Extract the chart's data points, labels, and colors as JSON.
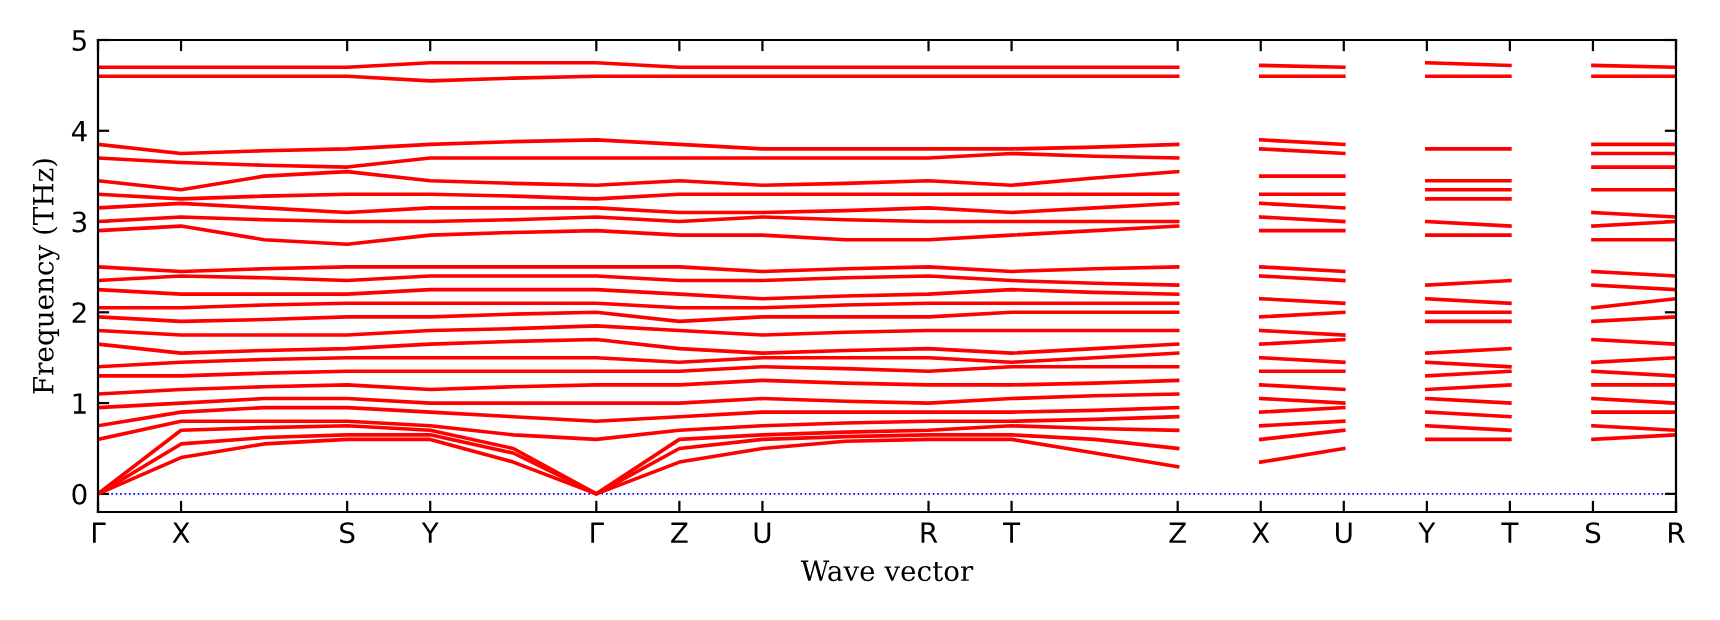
{
  "chart_data": {
    "type": "line",
    "ylabel": "Frequency (THz)",
    "xlabel": "Wave vector",
    "categories": [
      "Γ",
      "X",
      null,
      "S",
      "Y",
      null,
      "Γ",
      "Z",
      "U",
      null,
      "R",
      "T",
      null,
      "Z",
      "X",
      "U",
      "Y",
      "T",
      "S",
      "R"
    ],
    "ylim": [
      -0.2,
      5
    ],
    "yticks": [
      0,
      1,
      2,
      3,
      4,
      5
    ],
    "grid": false,
    "legend": false,
    "marker": "none",
    "line_style": "solid",
    "ref_lines": [
      {
        "axis": "y",
        "value": 0,
        "color": "#0000ff",
        "line_style": "dotted"
      }
    ],
    "series": [
      {
        "color": "#ff0000",
        "values": [
          0,
          0.4,
          0.55,
          0.6,
          0.6,
          0.35,
          0,
          0.35,
          0.5,
          0.58,
          0.6,
          0.6,
          0.45,
          0.3,
          null,
          null,
          null,
          null,
          null,
          null
        ]
      },
      {
        "color": "#ff0000",
        "values": [
          0,
          0.55,
          0.62,
          0.65,
          0.65,
          0.45,
          0,
          0.5,
          0.6,
          0.63,
          0.65,
          0.65,
          0.6,
          0.5,
          null,
          null,
          null,
          null,
          null,
          null
        ]
      },
      {
        "color": "#ff0000",
        "values": [
          0,
          0.7,
          0.73,
          0.75,
          0.7,
          0.5,
          0,
          0.6,
          0.65,
          0.68,
          0.7,
          0.75,
          0.72,
          0.7,
          null,
          null,
          null,
          null,
          null,
          null
        ]
      },
      {
        "color": "#ff0000",
        "values": [
          0.6,
          0.8,
          0.8,
          0.8,
          0.75,
          0.65,
          0.6,
          0.7,
          0.75,
          0.78,
          0.8,
          0.8,
          0.82,
          0.85,
          null,
          null,
          null,
          null,
          null,
          null
        ]
      },
      {
        "color": "#ff0000",
        "values": [
          0.75,
          0.9,
          0.95,
          0.95,
          0.9,
          0.85,
          0.8,
          0.85,
          0.9,
          0.9,
          0.9,
          0.9,
          0.92,
          0.95,
          null,
          null,
          null,
          null,
          null,
          null
        ]
      },
      {
        "color": "#ff0000",
        "values": [
          0.95,
          1.0,
          1.05,
          1.05,
          1.0,
          1.0,
          1.0,
          1.0,
          1.05,
          1.02,
          1.0,
          1.05,
          1.08,
          1.1,
          null,
          null,
          null,
          null,
          null,
          null
        ]
      },
      {
        "color": "#ff0000",
        "values": [
          1.1,
          1.15,
          1.18,
          1.2,
          1.15,
          1.18,
          1.2,
          1.2,
          1.25,
          1.22,
          1.2,
          1.2,
          1.22,
          1.25,
          null,
          null,
          null,
          null,
          null,
          null
        ]
      },
      {
        "color": "#ff0000",
        "values": [
          1.3,
          1.3,
          1.33,
          1.35,
          1.35,
          1.35,
          1.35,
          1.35,
          1.4,
          1.38,
          1.35,
          1.4,
          1.4,
          1.4,
          null,
          null,
          null,
          null,
          null,
          null
        ]
      },
      {
        "color": "#ff0000",
        "values": [
          1.4,
          1.45,
          1.48,
          1.5,
          1.5,
          1.5,
          1.5,
          1.45,
          1.5,
          1.5,
          1.5,
          1.45,
          1.5,
          1.55,
          null,
          null,
          null,
          null,
          null,
          null
        ]
      },
      {
        "color": "#ff0000",
        "values": [
          1.65,
          1.55,
          1.58,
          1.6,
          1.65,
          1.68,
          1.7,
          1.6,
          1.55,
          1.58,
          1.6,
          1.55,
          1.6,
          1.65,
          null,
          null,
          null,
          null,
          null,
          null
        ]
      },
      {
        "color": "#ff0000",
        "values": [
          1.8,
          1.75,
          1.75,
          1.75,
          1.8,
          1.82,
          1.85,
          1.8,
          1.75,
          1.78,
          1.8,
          1.8,
          1.8,
          1.8,
          null,
          null,
          null,
          null,
          null,
          null
        ]
      },
      {
        "color": "#ff0000",
        "values": [
          1.95,
          1.9,
          1.92,
          1.95,
          1.95,
          1.98,
          2.0,
          1.9,
          1.95,
          1.95,
          1.95,
          2.0,
          2.0,
          2.0,
          null,
          null,
          null,
          null,
          null,
          null
        ]
      },
      {
        "color": "#ff0000",
        "values": [
          2.05,
          2.05,
          2.08,
          2.1,
          2.1,
          2.1,
          2.1,
          2.05,
          2.05,
          2.08,
          2.1,
          2.1,
          2.1,
          2.1,
          null,
          null,
          null,
          null,
          null,
          null
        ]
      },
      {
        "color": "#ff0000",
        "values": [
          2.25,
          2.2,
          2.2,
          2.2,
          2.25,
          2.25,
          2.25,
          2.2,
          2.15,
          2.18,
          2.2,
          2.25,
          2.22,
          2.2,
          null,
          null,
          null,
          null,
          null,
          null
        ]
      },
      {
        "color": "#ff0000",
        "values": [
          2.35,
          2.4,
          2.38,
          2.35,
          2.4,
          2.4,
          2.4,
          2.35,
          2.35,
          2.38,
          2.4,
          2.35,
          2.32,
          2.3,
          null,
          null,
          null,
          null,
          null,
          null
        ]
      },
      {
        "color": "#ff0000",
        "values": [
          2.5,
          2.45,
          2.48,
          2.5,
          2.5,
          2.5,
          2.5,
          2.5,
          2.45,
          2.48,
          2.5,
          2.45,
          2.48,
          2.5,
          null,
          null,
          null,
          null,
          null,
          null
        ]
      },
      {
        "color": "#ff0000",
        "values": [
          2.9,
          2.95,
          2.8,
          2.75,
          2.85,
          2.88,
          2.9,
          2.85,
          2.85,
          2.8,
          2.8,
          2.85,
          2.9,
          2.95,
          null,
          null,
          null,
          null,
          null,
          null
        ]
      },
      {
        "color": "#ff0000",
        "values": [
          3.0,
          3.05,
          3.02,
          3.0,
          3.0,
          3.02,
          3.05,
          3.0,
          3.05,
          3.02,
          3.0,
          3.0,
          3.0,
          3.0,
          null,
          null,
          null,
          null,
          null,
          null
        ]
      },
      {
        "color": "#ff0000",
        "values": [
          3.15,
          3.2,
          3.15,
          3.1,
          3.15,
          3.15,
          3.15,
          3.1,
          3.1,
          3.12,
          3.15,
          3.1,
          3.15,
          3.2,
          null,
          null,
          null,
          null,
          null,
          null
        ]
      },
      {
        "color": "#ff0000",
        "values": [
          3.3,
          3.25,
          3.28,
          3.3,
          3.3,
          3.28,
          3.25,
          3.3,
          3.3,
          3.3,
          3.3,
          3.3,
          3.3,
          3.3,
          null,
          null,
          null,
          null,
          null,
          null
        ]
      },
      {
        "color": "#ff0000",
        "values": [
          3.45,
          3.35,
          3.5,
          3.55,
          3.45,
          3.42,
          3.4,
          3.45,
          3.4,
          3.42,
          3.45,
          3.4,
          3.48,
          3.55,
          null,
          null,
          null,
          null,
          null,
          null
        ]
      },
      {
        "color": "#ff0000",
        "values": [
          3.7,
          3.65,
          3.62,
          3.6,
          3.7,
          3.7,
          3.7,
          3.7,
          3.7,
          3.7,
          3.7,
          3.75,
          3.72,
          3.7,
          null,
          null,
          null,
          null,
          null,
          null
        ]
      },
      {
        "color": "#ff0000",
        "values": [
          3.85,
          3.75,
          3.78,
          3.8,
          3.85,
          3.88,
          3.9,
          3.85,
          3.8,
          3.8,
          3.8,
          3.8,
          3.82,
          3.85,
          null,
          null,
          null,
          null,
          null,
          null
        ]
      },
      {
        "color": "#ff0000",
        "values": [
          4.6,
          4.6,
          4.6,
          4.6,
          4.55,
          4.58,
          4.6,
          4.6,
          4.6,
          4.6,
          4.6,
          4.6,
          4.6,
          4.6,
          null,
          null,
          null,
          null,
          null,
          null
        ]
      },
      {
        "color": "#ff0000",
        "values": [
          4.7,
          4.7,
          4.7,
          4.7,
          4.75,
          4.75,
          4.75,
          4.7,
          4.7,
          4.7,
          4.7,
          4.7,
          4.7,
          4.7,
          null,
          null,
          null,
          null,
          null,
          null
        ]
      },
      {
        "color": "#ff0000",
        "values": [
          null,
          null,
          null,
          null,
          null,
          null,
          null,
          null,
          null,
          null,
          null,
          null,
          null,
          null,
          0.35,
          0.5,
          null,
          null,
          null,
          null
        ]
      },
      {
        "color": "#ff0000",
        "values": [
          null,
          null,
          null,
          null,
          null,
          null,
          null,
          null,
          null,
          null,
          null,
          null,
          null,
          null,
          0.6,
          0.7,
          null,
          null,
          null,
          null
        ]
      },
      {
        "color": "#ff0000",
        "values": [
          null,
          null,
          null,
          null,
          null,
          null,
          null,
          null,
          null,
          null,
          null,
          null,
          null,
          null,
          0.75,
          0.8,
          null,
          null,
          null,
          null
        ]
      },
      {
        "color": "#ff0000",
        "values": [
          null,
          null,
          null,
          null,
          null,
          null,
          null,
          null,
          null,
          null,
          null,
          null,
          null,
          null,
          0.9,
          0.95,
          null,
          null,
          null,
          null
        ]
      },
      {
        "color": "#ff0000",
        "values": [
          null,
          null,
          null,
          null,
          null,
          null,
          null,
          null,
          null,
          null,
          null,
          null,
          null,
          null,
          1.05,
          1.0,
          null,
          null,
          null,
          null
        ]
      },
      {
        "color": "#ff0000",
        "values": [
          null,
          null,
          null,
          null,
          null,
          null,
          null,
          null,
          null,
          null,
          null,
          null,
          null,
          null,
          1.2,
          1.15,
          null,
          null,
          null,
          null
        ]
      },
      {
        "color": "#ff0000",
        "values": [
          null,
          null,
          null,
          null,
          null,
          null,
          null,
          null,
          null,
          null,
          null,
          null,
          null,
          null,
          1.35,
          1.35,
          null,
          null,
          null,
          null
        ]
      },
      {
        "color": "#ff0000",
        "values": [
          null,
          null,
          null,
          null,
          null,
          null,
          null,
          null,
          null,
          null,
          null,
          null,
          null,
          null,
          1.5,
          1.45,
          null,
          null,
          null,
          null
        ]
      },
      {
        "color": "#ff0000",
        "values": [
          null,
          null,
          null,
          null,
          null,
          null,
          null,
          null,
          null,
          null,
          null,
          null,
          null,
          null,
          1.65,
          1.7,
          null,
          null,
          null,
          null
        ]
      },
      {
        "color": "#ff0000",
        "values": [
          null,
          null,
          null,
          null,
          null,
          null,
          null,
          null,
          null,
          null,
          null,
          null,
          null,
          null,
          1.8,
          1.75,
          null,
          null,
          null,
          null
        ]
      },
      {
        "color": "#ff0000",
        "values": [
          null,
          null,
          null,
          null,
          null,
          null,
          null,
          null,
          null,
          null,
          null,
          null,
          null,
          null,
          1.95,
          2.0,
          null,
          null,
          null,
          null
        ]
      },
      {
        "color": "#ff0000",
        "values": [
          null,
          null,
          null,
          null,
          null,
          null,
          null,
          null,
          null,
          null,
          null,
          null,
          null,
          null,
          2.15,
          2.1,
          null,
          null,
          null,
          null
        ]
      },
      {
        "color": "#ff0000",
        "values": [
          null,
          null,
          null,
          null,
          null,
          null,
          null,
          null,
          null,
          null,
          null,
          null,
          null,
          null,
          2.4,
          2.35,
          null,
          null,
          null,
          null
        ]
      },
      {
        "color": "#ff0000",
        "values": [
          null,
          null,
          null,
          null,
          null,
          null,
          null,
          null,
          null,
          null,
          null,
          null,
          null,
          null,
          2.5,
          2.45,
          null,
          null,
          null,
          null
        ]
      },
      {
        "color": "#ff0000",
        "values": [
          null,
          null,
          null,
          null,
          null,
          null,
          null,
          null,
          null,
          null,
          null,
          null,
          null,
          null,
          2.9,
          2.9,
          null,
          null,
          null,
          null
        ]
      },
      {
        "color": "#ff0000",
        "values": [
          null,
          null,
          null,
          null,
          null,
          null,
          null,
          null,
          null,
          null,
          null,
          null,
          null,
          null,
          3.05,
          3.0,
          null,
          null,
          null,
          null
        ]
      },
      {
        "color": "#ff0000",
        "values": [
          null,
          null,
          null,
          null,
          null,
          null,
          null,
          null,
          null,
          null,
          null,
          null,
          null,
          null,
          3.2,
          3.15,
          null,
          null,
          null,
          null
        ]
      },
      {
        "color": "#ff0000",
        "values": [
          null,
          null,
          null,
          null,
          null,
          null,
          null,
          null,
          null,
          null,
          null,
          null,
          null,
          null,
          3.3,
          3.3,
          null,
          null,
          null,
          null
        ]
      },
      {
        "color": "#ff0000",
        "values": [
          null,
          null,
          null,
          null,
          null,
          null,
          null,
          null,
          null,
          null,
          null,
          null,
          null,
          null,
          3.5,
          3.5,
          null,
          null,
          null,
          null
        ]
      },
      {
        "color": "#ff0000",
        "values": [
          null,
          null,
          null,
          null,
          null,
          null,
          null,
          null,
          null,
          null,
          null,
          null,
          null,
          null,
          3.8,
          3.75,
          null,
          null,
          null,
          null
        ]
      },
      {
        "color": "#ff0000",
        "values": [
          null,
          null,
          null,
          null,
          null,
          null,
          null,
          null,
          null,
          null,
          null,
          null,
          null,
          null,
          3.9,
          3.85,
          null,
          null,
          null,
          null
        ]
      },
      {
        "color": "#ff0000",
        "values": [
          null,
          null,
          null,
          null,
          null,
          null,
          null,
          null,
          null,
          null,
          null,
          null,
          null,
          null,
          4.6,
          4.6,
          null,
          null,
          null,
          null
        ]
      },
      {
        "color": "#ff0000",
        "values": [
          null,
          null,
          null,
          null,
          null,
          null,
          null,
          null,
          null,
          null,
          null,
          null,
          null,
          null,
          4.72,
          4.7,
          null,
          null,
          null,
          null
        ]
      },
      {
        "color": "#ff0000",
        "values": [
          null,
          null,
          null,
          null,
          null,
          null,
          null,
          null,
          null,
          null,
          null,
          null,
          null,
          null,
          null,
          null,
          0.6,
          0.6,
          null,
          null
        ]
      },
      {
        "color": "#ff0000",
        "values": [
          null,
          null,
          null,
          null,
          null,
          null,
          null,
          null,
          null,
          null,
          null,
          null,
          null,
          null,
          null,
          null,
          0.75,
          0.7,
          null,
          null
        ]
      },
      {
        "color": "#ff0000",
        "values": [
          null,
          null,
          null,
          null,
          null,
          null,
          null,
          null,
          null,
          null,
          null,
          null,
          null,
          null,
          null,
          null,
          0.9,
          0.85,
          null,
          null
        ]
      },
      {
        "color": "#ff0000",
        "values": [
          null,
          null,
          null,
          null,
          null,
          null,
          null,
          null,
          null,
          null,
          null,
          null,
          null,
          null,
          null,
          null,
          1.05,
          1.0,
          null,
          null
        ]
      },
      {
        "color": "#ff0000",
        "values": [
          null,
          null,
          null,
          null,
          null,
          null,
          null,
          null,
          null,
          null,
          null,
          null,
          null,
          null,
          null,
          null,
          1.15,
          1.2,
          null,
          null
        ]
      },
      {
        "color": "#ff0000",
        "values": [
          null,
          null,
          null,
          null,
          null,
          null,
          null,
          null,
          null,
          null,
          null,
          null,
          null,
          null,
          null,
          null,
          1.3,
          1.35,
          null,
          null
        ]
      },
      {
        "color": "#ff0000",
        "values": [
          null,
          null,
          null,
          null,
          null,
          null,
          null,
          null,
          null,
          null,
          null,
          null,
          null,
          null,
          null,
          null,
          1.45,
          1.4,
          null,
          null
        ]
      },
      {
        "color": "#ff0000",
        "values": [
          null,
          null,
          null,
          null,
          null,
          null,
          null,
          null,
          null,
          null,
          null,
          null,
          null,
          null,
          null,
          null,
          1.55,
          1.6,
          null,
          null
        ]
      },
      {
        "color": "#ff0000",
        "values": [
          null,
          null,
          null,
          null,
          null,
          null,
          null,
          null,
          null,
          null,
          null,
          null,
          null,
          null,
          null,
          null,
          1.9,
          1.9,
          null,
          null
        ]
      },
      {
        "color": "#ff0000",
        "values": [
          null,
          null,
          null,
          null,
          null,
          null,
          null,
          null,
          null,
          null,
          null,
          null,
          null,
          null,
          null,
          null,
          2.0,
          2.0,
          null,
          null
        ]
      },
      {
        "color": "#ff0000",
        "values": [
          null,
          null,
          null,
          null,
          null,
          null,
          null,
          null,
          null,
          null,
          null,
          null,
          null,
          null,
          null,
          null,
          2.15,
          2.1,
          null,
          null
        ]
      },
      {
        "color": "#ff0000",
        "values": [
          null,
          null,
          null,
          null,
          null,
          null,
          null,
          null,
          null,
          null,
          null,
          null,
          null,
          null,
          null,
          null,
          2.3,
          2.35,
          null,
          null
        ]
      },
      {
        "color": "#ff0000",
        "values": [
          null,
          null,
          null,
          null,
          null,
          null,
          null,
          null,
          null,
          null,
          null,
          null,
          null,
          null,
          null,
          null,
          2.85,
          2.85,
          null,
          null
        ]
      },
      {
        "color": "#ff0000",
        "values": [
          null,
          null,
          null,
          null,
          null,
          null,
          null,
          null,
          null,
          null,
          null,
          null,
          null,
          null,
          null,
          null,
          3.0,
          2.95,
          null,
          null
        ]
      },
      {
        "color": "#ff0000",
        "values": [
          null,
          null,
          null,
          null,
          null,
          null,
          null,
          null,
          null,
          null,
          null,
          null,
          null,
          null,
          null,
          null,
          3.25,
          3.25,
          null,
          null
        ]
      },
      {
        "color": "#ff0000",
        "values": [
          null,
          null,
          null,
          null,
          null,
          null,
          null,
          null,
          null,
          null,
          null,
          null,
          null,
          null,
          null,
          null,
          3.35,
          3.35,
          null,
          null
        ]
      },
      {
        "color": "#ff0000",
        "values": [
          null,
          null,
          null,
          null,
          null,
          null,
          null,
          null,
          null,
          null,
          null,
          null,
          null,
          null,
          null,
          null,
          3.45,
          3.45,
          null,
          null
        ]
      },
      {
        "color": "#ff0000",
        "values": [
          null,
          null,
          null,
          null,
          null,
          null,
          null,
          null,
          null,
          null,
          null,
          null,
          null,
          null,
          null,
          null,
          3.8,
          3.8,
          null,
          null
        ]
      },
      {
        "color": "#ff0000",
        "values": [
          null,
          null,
          null,
          null,
          null,
          null,
          null,
          null,
          null,
          null,
          null,
          null,
          null,
          null,
          null,
          null,
          4.6,
          4.6,
          null,
          null
        ]
      },
      {
        "color": "#ff0000",
        "values": [
          null,
          null,
          null,
          null,
          null,
          null,
          null,
          null,
          null,
          null,
          null,
          null,
          null,
          null,
          null,
          null,
          4.75,
          4.72,
          null,
          null
        ]
      },
      {
        "color": "#ff0000",
        "values": [
          null,
          null,
          null,
          null,
          null,
          null,
          null,
          null,
          null,
          null,
          null,
          null,
          null,
          null,
          null,
          null,
          null,
          null,
          0.6,
          0.65
        ]
      },
      {
        "color": "#ff0000",
        "values": [
          null,
          null,
          null,
          null,
          null,
          null,
          null,
          null,
          null,
          null,
          null,
          null,
          null,
          null,
          null,
          null,
          null,
          null,
          0.75,
          0.7
        ]
      },
      {
        "color": "#ff0000",
        "values": [
          null,
          null,
          null,
          null,
          null,
          null,
          null,
          null,
          null,
          null,
          null,
          null,
          null,
          null,
          null,
          null,
          null,
          null,
          0.9,
          0.9
        ]
      },
      {
        "color": "#ff0000",
        "values": [
          null,
          null,
          null,
          null,
          null,
          null,
          null,
          null,
          null,
          null,
          null,
          null,
          null,
          null,
          null,
          null,
          null,
          null,
          1.05,
          1.0
        ]
      },
      {
        "color": "#ff0000",
        "values": [
          null,
          null,
          null,
          null,
          null,
          null,
          null,
          null,
          null,
          null,
          null,
          null,
          null,
          null,
          null,
          null,
          null,
          null,
          1.2,
          1.2
        ]
      },
      {
        "color": "#ff0000",
        "values": [
          null,
          null,
          null,
          null,
          null,
          null,
          null,
          null,
          null,
          null,
          null,
          null,
          null,
          null,
          null,
          null,
          null,
          null,
          1.35,
          1.3
        ]
      },
      {
        "color": "#ff0000",
        "values": [
          null,
          null,
          null,
          null,
          null,
          null,
          null,
          null,
          null,
          null,
          null,
          null,
          null,
          null,
          null,
          null,
          null,
          null,
          1.45,
          1.5
        ]
      },
      {
        "color": "#ff0000",
        "values": [
          null,
          null,
          null,
          null,
          null,
          null,
          null,
          null,
          null,
          null,
          null,
          null,
          null,
          null,
          null,
          null,
          null,
          null,
          1.7,
          1.65
        ]
      },
      {
        "color": "#ff0000",
        "values": [
          null,
          null,
          null,
          null,
          null,
          null,
          null,
          null,
          null,
          null,
          null,
          null,
          null,
          null,
          null,
          null,
          null,
          null,
          1.9,
          1.95
        ]
      },
      {
        "color": "#ff0000",
        "values": [
          null,
          null,
          null,
          null,
          null,
          null,
          null,
          null,
          null,
          null,
          null,
          null,
          null,
          null,
          null,
          null,
          null,
          null,
          2.05,
          2.15
        ]
      },
      {
        "color": "#ff0000",
        "values": [
          null,
          null,
          null,
          null,
          null,
          null,
          null,
          null,
          null,
          null,
          null,
          null,
          null,
          null,
          null,
          null,
          null,
          null,
          2.3,
          2.25
        ]
      },
      {
        "color": "#ff0000",
        "values": [
          null,
          null,
          null,
          null,
          null,
          null,
          null,
          null,
          null,
          null,
          null,
          null,
          null,
          null,
          null,
          null,
          null,
          null,
          2.45,
          2.4
        ]
      },
      {
        "color": "#ff0000",
        "values": [
          null,
          null,
          null,
          null,
          null,
          null,
          null,
          null,
          null,
          null,
          null,
          null,
          null,
          null,
          null,
          null,
          null,
          null,
          2.8,
          2.8
        ]
      },
      {
        "color": "#ff0000",
        "values": [
          null,
          null,
          null,
          null,
          null,
          null,
          null,
          null,
          null,
          null,
          null,
          null,
          null,
          null,
          null,
          null,
          null,
          null,
          2.95,
          3.0
        ]
      },
      {
        "color": "#ff0000",
        "values": [
          null,
          null,
          null,
          null,
          null,
          null,
          null,
          null,
          null,
          null,
          null,
          null,
          null,
          null,
          null,
          null,
          null,
          null,
          3.1,
          3.05
        ]
      },
      {
        "color": "#ff0000",
        "values": [
          null,
          null,
          null,
          null,
          null,
          null,
          null,
          null,
          null,
          null,
          null,
          null,
          null,
          null,
          null,
          null,
          null,
          null,
          3.35,
          3.35
        ]
      },
      {
        "color": "#ff0000",
        "values": [
          null,
          null,
          null,
          null,
          null,
          null,
          null,
          null,
          null,
          null,
          null,
          null,
          null,
          null,
          null,
          null,
          null,
          null,
          3.6,
          3.6
        ]
      },
      {
        "color": "#ff0000",
        "values": [
          null,
          null,
          null,
          null,
          null,
          null,
          null,
          null,
          null,
          null,
          null,
          null,
          null,
          null,
          null,
          null,
          null,
          null,
          3.75,
          3.75
        ]
      },
      {
        "color": "#ff0000",
        "values": [
          null,
          null,
          null,
          null,
          null,
          null,
          null,
          null,
          null,
          null,
          null,
          null,
          null,
          null,
          null,
          null,
          null,
          null,
          3.85,
          3.85
        ]
      },
      {
        "color": "#ff0000",
        "values": [
          null,
          null,
          null,
          null,
          null,
          null,
          null,
          null,
          null,
          null,
          null,
          null,
          null,
          null,
          null,
          null,
          null,
          null,
          4.6,
          4.6
        ]
      },
      {
        "color": "#ff0000",
        "values": [
          null,
          null,
          null,
          null,
          null,
          null,
          null,
          null,
          null,
          null,
          null,
          null,
          null,
          null,
          null,
          null,
          null,
          null,
          4.72,
          4.7
        ]
      }
    ]
  }
}
